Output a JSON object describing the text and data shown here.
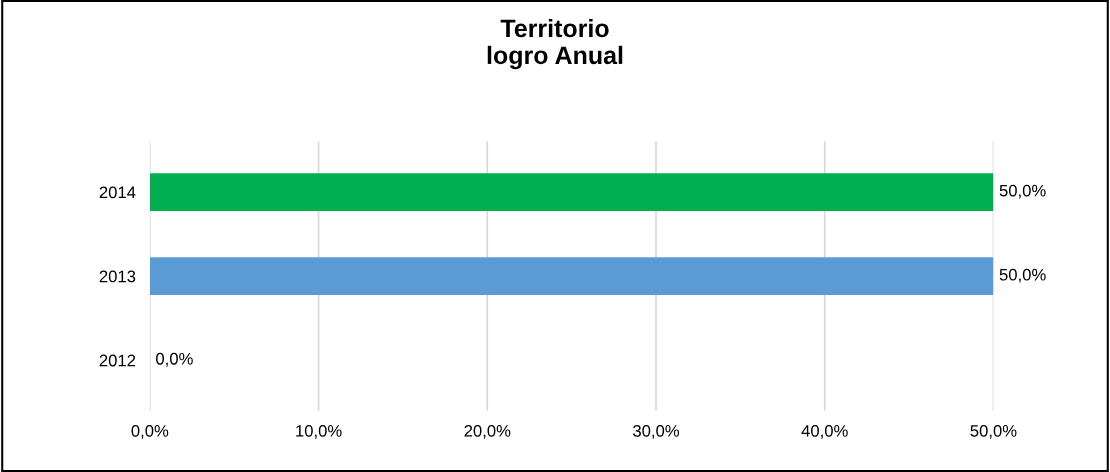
{
  "chart_data": {
    "type": "bar",
    "orientation": "horizontal",
    "title": "Territorio\nlogro Anual",
    "categories": [
      "2014",
      "2013",
      "2012"
    ],
    "values": [
      50,
      50,
      0
    ],
    "colors": [
      "#00b050",
      "#5b9bd5",
      "#c00000"
    ],
    "value_labels": [
      "50,0%",
      "50,0%",
      "0,0%"
    ],
    "xlim": [
      0,
      50
    ],
    "xticks": [
      {
        "value": 0,
        "label": "0,0%"
      },
      {
        "value": 10,
        "label": "10,0%"
      },
      {
        "value": 20,
        "label": "20,0%"
      },
      {
        "value": 30,
        "label": "30,0%"
      },
      {
        "value": 40,
        "label": "40,0%"
      },
      {
        "value": 50,
        "label": "50,0%"
      }
    ],
    "grid": "x"
  }
}
